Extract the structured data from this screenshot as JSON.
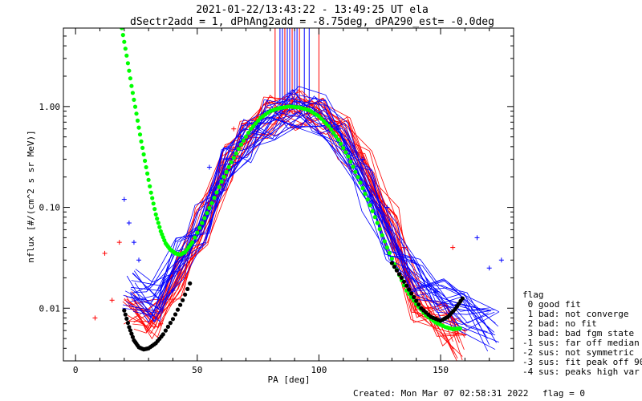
{
  "title_lines": [
    "2021-01-22/13:43:22 - 13:49:25 UT ela",
    "dSectr2add = 1, dPhAng2add = -8.75deg, dPA290_est=  -0.0deg"
  ],
  "footer": {
    "created": "Created: Mon Mar 07 02:58:31 2022",
    "flag": "flag = 0"
  },
  "legend": {
    "title": "flag",
    "entries": [
      " 0 good fit",
      " 1 bad: not converge",
      " 2 bad: no fit",
      " 3 bad: bad fgm state",
      "-1 sus: far off median",
      "-2 sus: not symmetric",
      "-3 sus: fit peak off 90",
      "-4 sus: peaks high var"
    ]
  },
  "colors": {
    "series_a": "#ff0000",
    "series_b": "#0000ff",
    "fit_green": "#00ff00",
    "fit_black": "#000000"
  },
  "chart_data": {
    "type": "line",
    "xlabel": "PA [deg]",
    "ylabel": "nflux [#/(cm^2 s sr MeV)]",
    "xlim": [
      -5,
      180
    ],
    "ylim": [
      0.003,
      6
    ],
    "ylog": true,
    "xticks": [
      0,
      50,
      100,
      150
    ],
    "xtick_labels": [
      "0",
      "50",
      "100",
      "150"
    ],
    "yticks": [
      0.01,
      0.1,
      1.0
    ],
    "ytick_labels": [
      "0.01",
      "0.10",
      "1.00"
    ],
    "grid": false,
    "legend_placement": "right, outside plot",
    "series": [
      {
        "color": "red",
        "profile_x": [
          22,
          32,
          42,
          52,
          62,
          70,
          80,
          90,
          100,
          110,
          120,
          130,
          140,
          150,
          158
        ],
        "profile_y": [
          0.009,
          0.008,
          0.02,
          0.06,
          0.25,
          0.5,
          0.8,
          0.95,
          0.8,
          0.5,
          0.22,
          0.06,
          0.012,
          0.007,
          0.005
        ],
        "scatter_x": [
          8,
          12,
          15,
          18,
          35,
          45,
          55,
          65,
          75,
          85,
          95,
          105,
          115,
          125,
          135,
          145,
          155,
          160
        ],
        "scatter_y": [
          0.008,
          0.035,
          0.012,
          0.045,
          0.007,
          0.02,
          0.11,
          0.6,
          0.8,
          0.9,
          0.85,
          0.7,
          0.35,
          0.1,
          0.04,
          0.01,
          0.04,
          0.006
        ]
      },
      {
        "color": "blue",
        "profile_x": [
          22,
          32,
          42,
          52,
          62,
          70,
          80,
          90,
          100,
          110,
          120,
          130,
          140,
          150,
          160,
          172
        ],
        "profile_y": [
          0.015,
          0.012,
          0.03,
          0.07,
          0.25,
          0.45,
          0.75,
          0.95,
          0.8,
          0.45,
          0.15,
          0.05,
          0.02,
          0.012,
          0.01,
          0.006
        ],
        "scatter_x": [
          20,
          22,
          24,
          26,
          40,
          55,
          62,
          68,
          78,
          88,
          98,
          108,
          118,
          128,
          138,
          148,
          165,
          170,
          175
        ],
        "scatter_y": [
          0.12,
          0.07,
          0.045,
          0.03,
          0.015,
          0.25,
          0.3,
          0.5,
          0.85,
          1.0,
          0.9,
          0.6,
          0.3,
          0.1,
          0.03,
          0.015,
          0.05,
          0.025,
          0.03
        ]
      },
      {
        "color": "green",
        "x": [
          19,
          21,
          23,
          25,
          27,
          29,
          31,
          33,
          35,
          37,
          39,
          41,
          43,
          45,
          48,
          52,
          56,
          60,
          64,
          68,
          72,
          76,
          80,
          84,
          88,
          92,
          96,
          100,
          104,
          108,
          112,
          116,
          120,
          124,
          128,
          132,
          136,
          140,
          144,
          148,
          152,
          155,
          158
        ],
        "y": [
          6.0,
          3.2,
          1.6,
          0.85,
          0.45,
          0.25,
          0.14,
          0.085,
          0.058,
          0.044,
          0.038,
          0.035,
          0.034,
          0.036,
          0.045,
          0.07,
          0.11,
          0.18,
          0.28,
          0.42,
          0.6,
          0.77,
          0.9,
          0.97,
          1.0,
          0.98,
          0.92,
          0.8,
          0.64,
          0.47,
          0.32,
          0.2,
          0.12,
          0.07,
          0.04,
          0.024,
          0.015,
          0.011,
          0.0085,
          0.0072,
          0.0065,
          0.0062,
          0.0063
        ]
      },
      {
        "color": "black",
        "x": [
          20,
          22,
          24,
          26,
          28,
          30,
          33,
          36,
          40,
          44,
          48,
          130,
          134,
          138,
          142,
          146,
          150,
          153,
          156,
          159
        ],
        "y": [
          0.0095,
          0.0065,
          0.0048,
          0.0041,
          0.0039,
          0.004,
          0.0045,
          0.0055,
          0.0078,
          0.012,
          0.02,
          0.028,
          0.02,
          0.014,
          0.01,
          0.0082,
          0.0075,
          0.0082,
          0.0098,
          0.0125
        ]
      },
      {
        "color": "red/blue",
        "vertical_lines_x": [
          82,
          84,
          85,
          86,
          87,
          88,
          89,
          90,
          91,
          92,
          94,
          96,
          100
        ]
      }
    ]
  }
}
